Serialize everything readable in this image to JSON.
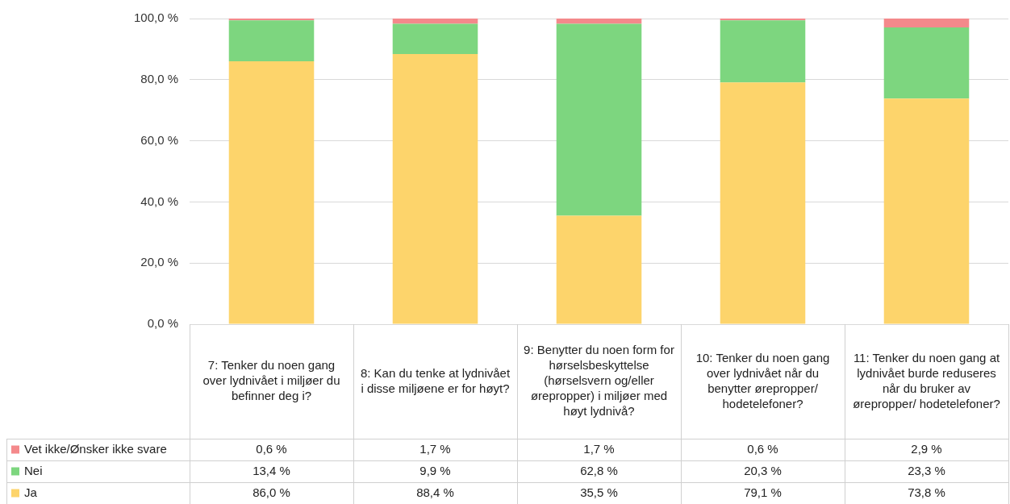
{
  "chart_data": {
    "type": "bar",
    "stacked": true,
    "categories": [
      "7: Tenker du noen gang over lydnivået i miljøer du befinner deg i?",
      "8: Kan du tenke at lydnivået i disse miljøene er for høyt?",
      "9: Benytter du noen form for hørselsbeskyttelse (hørselsvern og/eller ørepropper) i miljøer med høyt lydnivå?",
      "10: Tenker du noen gang over lydnivået når du benytter ørepropper/ hodetelefoner?",
      "11: Tenker du noen gang at lydnivået burde reduseres når du bruker av ørepropper/ hodetelefoner?"
    ],
    "series": [
      {
        "name": "Ja",
        "color": "#fdd46b",
        "values": [
          86.0,
          88.4,
          35.5,
          79.1,
          73.8
        ],
        "value_labels": [
          "86,0 %",
          "88,4 %",
          "35,5 %",
          "79,1 %",
          "73,8 %"
        ]
      },
      {
        "name": "Nei",
        "color": "#7dd67f",
        "values": [
          13.4,
          9.9,
          62.8,
          20.3,
          23.3
        ],
        "value_labels": [
          "13,4 %",
          "9,9 %",
          "62,8 %",
          "20,3 %",
          "23,3 %"
        ]
      },
      {
        "name": "Vet ikke/Ønsker ikke svare",
        "color": "#f4898b",
        "values": [
          0.6,
          1.7,
          1.7,
          0.6,
          2.9
        ],
        "value_labels": [
          "0,6 %",
          "1,7 %",
          "1,7 %",
          "0,6 %",
          "2,9 %"
        ]
      }
    ],
    "ylim": [
      0,
      100
    ],
    "yticks": [
      {
        "value": 0,
        "label": "0,0 %"
      },
      {
        "value": 20,
        "label": "20,0 %"
      },
      {
        "value": 40,
        "label": "40,0 %"
      },
      {
        "value": 60,
        "label": "60,0 %"
      },
      {
        "value": 80,
        "label": "80,0 %"
      },
      {
        "value": 100,
        "label": "100,0 %"
      }
    ],
    "grid": "y",
    "legend": "bottom"
  }
}
